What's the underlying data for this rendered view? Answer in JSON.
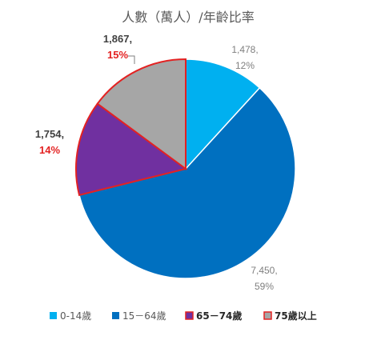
{
  "colors": {
    "c0_14": "#00b0f0",
    "c15_64": "#0070c0",
    "c65_74": "#7030a0",
    "c75": "#a6a6a6",
    "highlight": "#e32222",
    "slice_stroke": "#ffffff",
    "text_dark": "#404040",
    "text_grey": "#7f7f7f"
  },
  "chart_data": {
    "type": "pie",
    "title": "人數（萬人）/年齡比率",
    "categories": [
      "0-14歲",
      "15－64歲",
      "65－74歲",
      "75歲以上"
    ],
    "values": [
      1478,
      7450,
      1754,
      1867
    ],
    "value_labels": [
      "1,478,",
      "7,450,",
      "1,754,",
      "1,867,"
    ],
    "percent_labels": [
      "12%",
      "59%",
      "14%",
      "15%"
    ],
    "highlighted": [
      false,
      false,
      true,
      true
    ],
    "start_angle_deg": 0,
    "direction": "clockwise_from_top",
    "legend_position": "bottom"
  }
}
